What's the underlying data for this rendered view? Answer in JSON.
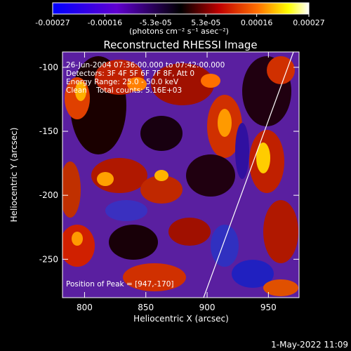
{
  "colorbar": {
    "ticks": [
      "-0.00027",
      "-0.00016",
      "-5.3e-05",
      "5.3e-05",
      "0.00016",
      "0.00027"
    ],
    "tick_values": [
      -0.00027,
      -0.00016,
      -5.3e-05,
      5.3e-05,
      0.00016,
      0.00027
    ],
    "range": [
      -0.00027,
      0.00027
    ],
    "unit_label": "(photons cm⁻² s⁻¹ asec⁻²)",
    "colormap": [
      "#0000ff",
      "#6000d0",
      "#000000",
      "#c00000",
      "#ff7000",
      "#ffff00",
      "#ffffff"
    ]
  },
  "chart_data": {
    "type": "heatmap",
    "title": "Reconstructed RHESSI Image",
    "xlabel": "Heliocentric X (arcsec)",
    "ylabel": "Heliocentric Y (arcsec)",
    "xlim": [
      782,
      975
    ],
    "ylim": [
      -280,
      -88
    ],
    "xticks": [
      800,
      850,
      900,
      950
    ],
    "yticks": [
      -100,
      -150,
      -200,
      -250
    ],
    "annotations": [
      "26-Jun-2004 07:36:00.000 to 07:42:00.000",
      "Detectors: 3F 4F 5F 6F 7F 8F, Att 0",
      "Energy Range: 25.0 - 50.0 keV",
      "Clean    Total counts: 5.16E+03"
    ],
    "peak_label": "Position of Peak = [947,-170]",
    "peak": [
      947,
      -170
    ],
    "limb_color": "#ffffff"
  },
  "footer": {
    "date": "1-May-2022 11:09"
  }
}
